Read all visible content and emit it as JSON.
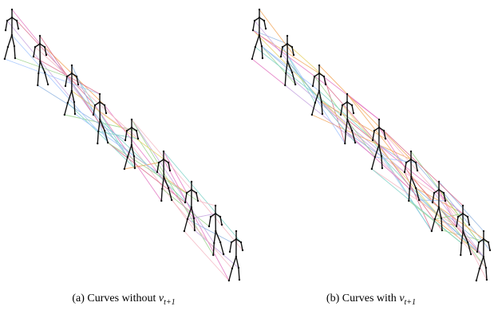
{
  "panels": [
    {
      "caption": {
        "prefix": "(a) Curves without",
        "symbol": "v",
        "subscript": "t+1"
      }
    },
    {
      "caption": {
        "prefix": "(b) Curves with",
        "symbol": "v",
        "subscript": "t+1"
      }
    }
  ]
}
